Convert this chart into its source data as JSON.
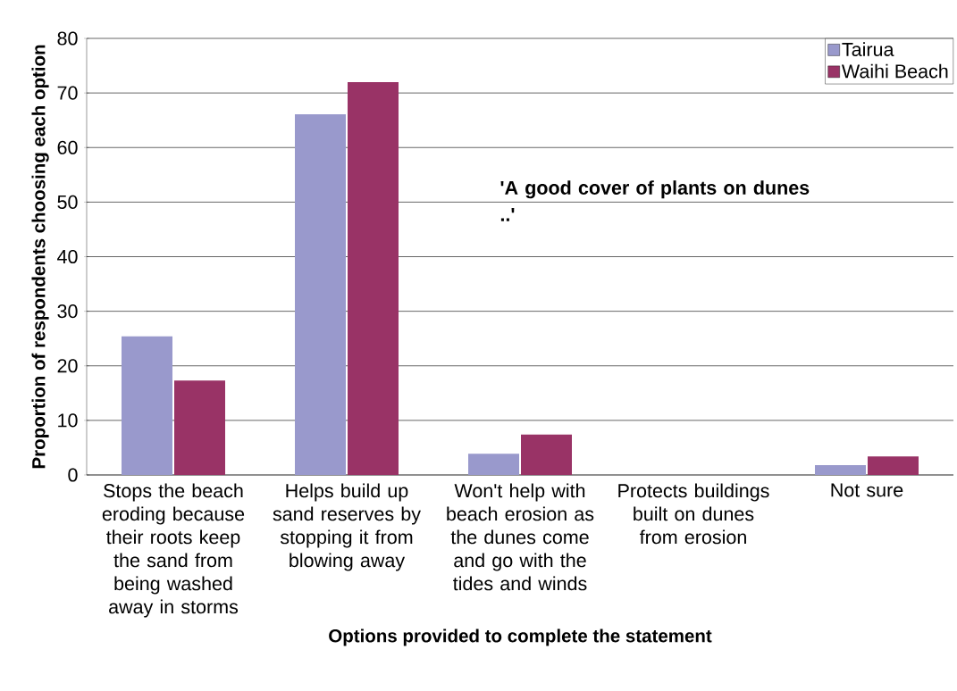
{
  "chart_data": {
    "type": "bar",
    "xlabel": "Options provided to complete the statement",
    "ylabel": "Proportion of respondents choosing each option",
    "categories": [
      "Stops the beach eroding because their roots keep the sand from being washed away in storms",
      "Helps build up sand reserves by stopping it from blowing away",
      "Won't help with beach erosion as the dunes come and go with the tides and winds",
      "Protects buildings built on dunes from erosion",
      "Not sure"
    ],
    "series": [
      {
        "name": "Tairua",
        "color": "#9999cc",
        "values": [
          25.4,
          66.1,
          3.9,
          0,
          1.8
        ]
      },
      {
        "name": "Waihi Beach",
        "color": "#993366",
        "values": [
          17.3,
          72.0,
          7.4,
          0,
          3.4
        ]
      }
    ],
    "ylim": [
      0,
      80
    ],
    "yticks": [
      0,
      10,
      20,
      30,
      40,
      50,
      60,
      70,
      80
    ],
    "grid": "y",
    "legend": "top right",
    "annotations": [
      "'A good cover of plants on dunes ..'"
    ]
  }
}
